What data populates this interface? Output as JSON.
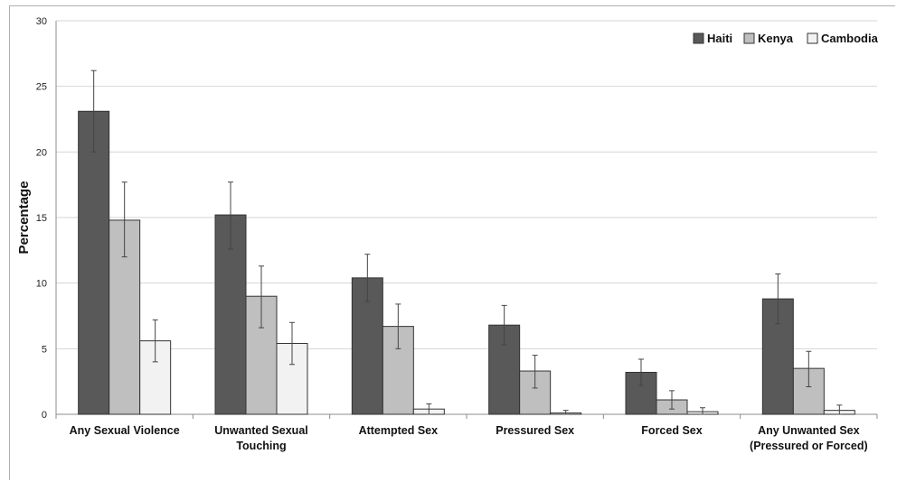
{
  "chart_data": {
    "type": "bar",
    "ylabel": "Percentage",
    "xlabel": "",
    "ylim": [
      0,
      30
    ],
    "yticks": [
      0,
      5,
      10,
      15,
      20,
      25,
      30
    ],
    "grid": true,
    "legend_position": "top-right",
    "categories": [
      [
        "Any Sexual Violence"
      ],
      [
        "Unwanted Sexual",
        "Touching"
      ],
      [
        "Attempted Sex"
      ],
      [
        "Pressured Sex"
      ],
      [
        "Forced Sex"
      ],
      [
        "Any Unwanted Sex",
        "(Pressured or Forced)"
      ]
    ],
    "series": [
      {
        "name": "Haiti",
        "color": "#595959",
        "values": [
          23.1,
          15.2,
          10.4,
          6.8,
          3.2,
          8.8
        ],
        "error_low": [
          20.0,
          12.6,
          8.6,
          5.3,
          2.2,
          6.9
        ],
        "error_high": [
          26.2,
          17.7,
          12.2,
          8.3,
          4.2,
          10.7
        ]
      },
      {
        "name": "Kenya",
        "color": "#bfbfbf",
        "values": [
          14.8,
          9.0,
          6.7,
          3.3,
          1.1,
          3.5
        ],
        "error_low": [
          12.0,
          6.6,
          5.0,
          2.0,
          0.4,
          2.1
        ],
        "error_high": [
          17.7,
          11.3,
          8.4,
          4.5,
          1.8,
          4.8
        ]
      },
      {
        "name": "Cambodia",
        "color": "#f2f2f2",
        "values": [
          5.6,
          5.4,
          0.4,
          0.1,
          0.2,
          0.3
        ],
        "error_low": [
          4.0,
          3.8,
          0.0,
          0.0,
          0.0,
          0.0
        ],
        "error_high": [
          7.2,
          7.0,
          0.8,
          0.3,
          0.5,
          0.7
        ]
      }
    ]
  }
}
